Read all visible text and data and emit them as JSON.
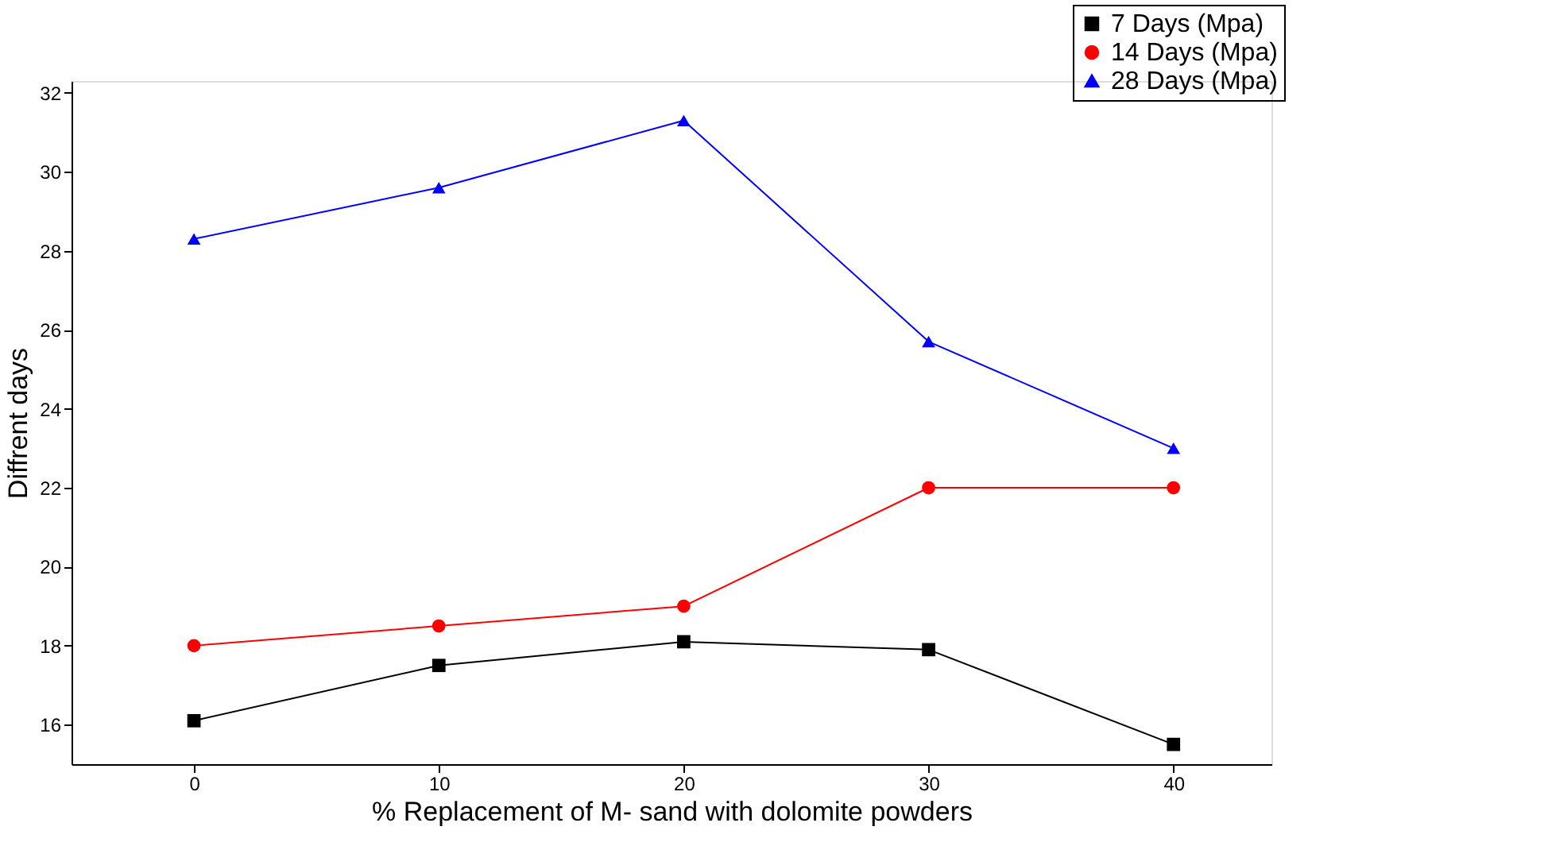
{
  "chart_data": {
    "type": "line",
    "xlabel": "% Replacement of M- sand with dolomite powders",
    "ylabel": "Diffrent days",
    "x": [
      0,
      10,
      20,
      30,
      40
    ],
    "xlim": [
      -5,
      44
    ],
    "xticks": [
      0,
      10,
      20,
      30,
      40
    ],
    "ylim": [
      15,
      32.3
    ],
    "yticks": [
      16,
      18,
      20,
      22,
      24,
      26,
      28,
      30,
      32
    ],
    "series": [
      {
        "name": "7 Days (Mpa)",
        "color": "#000000",
        "marker": "square",
        "values": [
          16.1,
          17.5,
          18.1,
          17.9,
          15.5
        ]
      },
      {
        "name": "14 Days (Mpa)",
        "color": "#ff0000",
        "marker": "circle",
        "values": [
          18.0,
          18.5,
          19.0,
          22.0,
          22.0
        ]
      },
      {
        "name": "28 Days (Mpa)",
        "color": "#0000ff",
        "marker": "triangle",
        "values": [
          28.3,
          29.6,
          31.3,
          25.7,
          23.0
        ]
      }
    ],
    "legend": "top right",
    "grid": false,
    "line_style": "solid"
  }
}
